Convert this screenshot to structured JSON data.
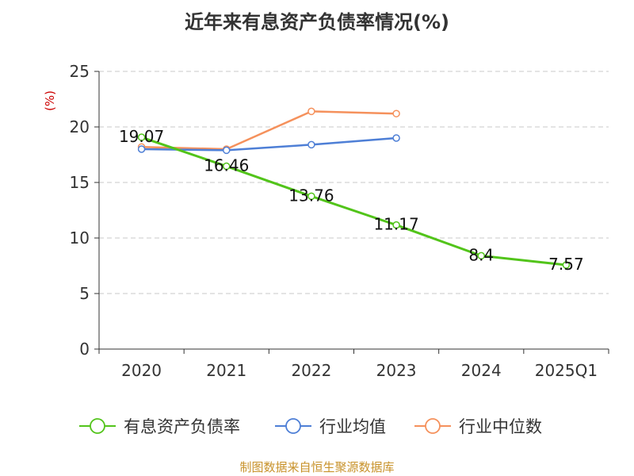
{
  "chart_data": {
    "type": "line",
    "title": "近年来有息资产负债率情况(%)",
    "ylabel": "(%)",
    "categories": [
      "2020",
      "2021",
      "2022",
      "2023",
      "2024",
      "2025Q1"
    ],
    "ylim": [
      0,
      25
    ],
    "yticks": [
      0,
      5,
      10,
      15,
      20,
      25
    ],
    "grid": "horizontal dashed",
    "legend_position": "bottom",
    "series": [
      {
        "name": "有息资产负债率",
        "color": "#52c41a",
        "values": [
          19.07,
          16.46,
          13.76,
          11.17,
          8.4,
          7.57
        ],
        "labels": [
          "19.07",
          "16.46",
          "13.76",
          "11.17",
          "8.4",
          "7.57"
        ]
      },
      {
        "name": "行业均值",
        "color": "#4e7fd6",
        "values": [
          18.0,
          17.9,
          18.4,
          19.0,
          null,
          null
        ]
      },
      {
        "name": "行业中位数",
        "color": "#f5915c",
        "values": [
          18.2,
          18.0,
          21.4,
          21.2,
          null,
          null
        ]
      }
    ]
  },
  "source": "制图数据来自恒生聚源数据库"
}
